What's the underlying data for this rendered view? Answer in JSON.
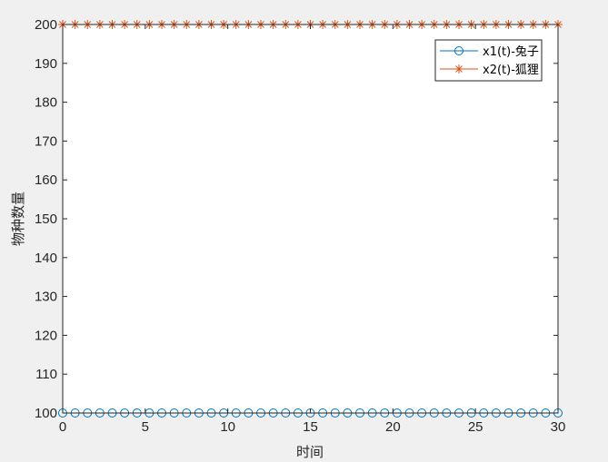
{
  "chart_data": {
    "type": "line",
    "title": "",
    "xlabel": "时间",
    "ylabel": "物种数量",
    "xlim": [
      0,
      30
    ],
    "ylim": [
      100,
      200
    ],
    "xticks": [
      0,
      5,
      10,
      15,
      20,
      25,
      30
    ],
    "yticks": [
      100,
      110,
      120,
      130,
      140,
      150,
      160,
      170,
      180,
      190,
      200
    ],
    "grid": false,
    "legend_position": "top-right",
    "x": [
      0,
      0.75,
      1.5,
      2.25,
      3,
      3.75,
      4.5,
      5.25,
      6,
      6.75,
      7.5,
      8.25,
      9,
      9.75,
      10.5,
      11.25,
      12,
      12.75,
      13.5,
      14.25,
      15,
      15.75,
      16.5,
      17.25,
      18,
      18.75,
      19.5,
      20.25,
      21,
      21.75,
      22.5,
      23.25,
      24,
      24.75,
      25.5,
      26.25,
      27,
      27.75,
      28.5,
      29.25,
      30
    ],
    "series": [
      {
        "name": "x1(t)-兔子",
        "color": "#0072BD",
        "marker": "circle",
        "values": [
          100,
          100,
          100,
          100,
          100,
          100,
          100,
          100,
          100,
          100,
          100,
          100,
          100,
          100,
          100,
          100,
          100,
          100,
          100,
          100,
          100,
          100,
          100,
          100,
          100,
          100,
          100,
          100,
          100,
          100,
          100,
          100,
          100,
          100,
          100,
          100,
          100,
          100,
          100,
          100,
          100
        ]
      },
      {
        "name": "x2(t)-狐狸",
        "color": "#D95319",
        "marker": "asterisk",
        "values": [
          200,
          200,
          200,
          200,
          200,
          200,
          200,
          200,
          200,
          200,
          200,
          200,
          200,
          200,
          200,
          200,
          200,
          200,
          200,
          200,
          200,
          200,
          200,
          200,
          200,
          200,
          200,
          200,
          200,
          200,
          200,
          200,
          200,
          200,
          200,
          200,
          200,
          200,
          200,
          200,
          200
        ]
      }
    ]
  }
}
